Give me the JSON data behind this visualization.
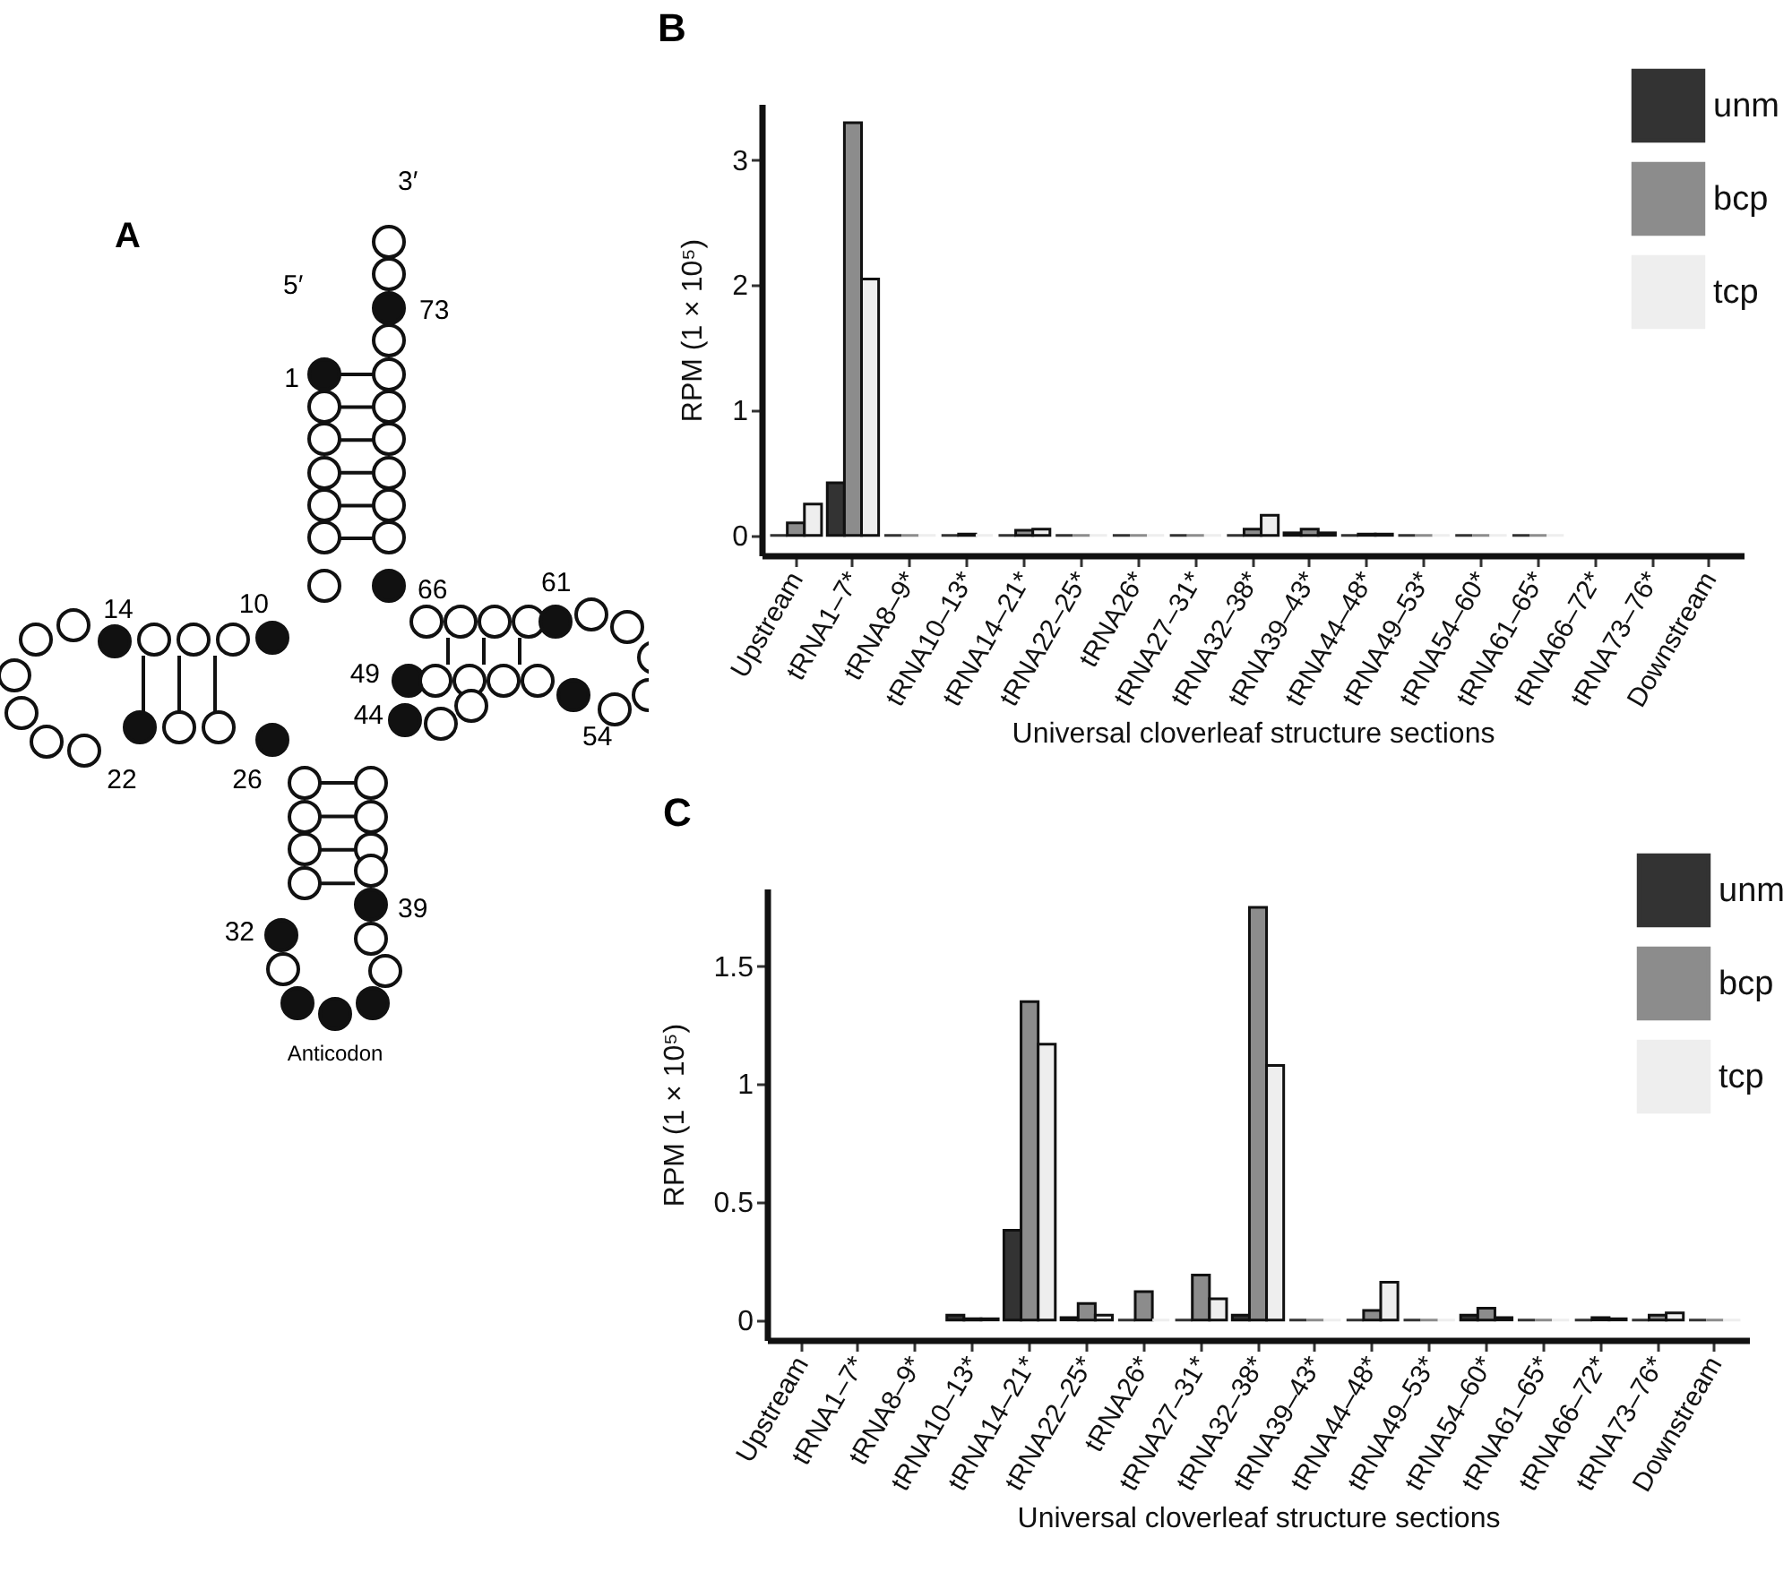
{
  "chart_data": [
    {
      "type": "other",
      "title": "A",
      "annotations": [
        "3′",
        "5′",
        "73",
        "1",
        "10",
        "66",
        "61",
        "14",
        "49",
        "44",
        "54",
        "22",
        "26",
        "32",
        "39",
        "Anticodon"
      ]
    },
    {
      "type": "bar",
      "title": "B",
      "xlabel": "Universal cloverleaf structure sections",
      "ylabel": "RPM  (1 × 10⁵)",
      "categories": [
        "Upstream",
        "tRNA1–7*",
        "tRNA8–9*",
        "tRNA10–13*",
        "tRNA14–21*",
        "tRNA22–25*",
        "tRNA26*",
        "tRNA27–31*",
        "tRNA32–38*",
        "tRNA39–43*",
        "tRNA44–48*",
        "tRNA49–53*",
        "tRNA54–60*",
        "tRNA61–65*",
        "tRNA66–72*",
        "tRNA73–76*",
        "Downstream"
      ],
      "series": [
        {
          "name": "unm",
          "color": "#333333",
          "values": [
            0,
            0.42,
            0,
            0,
            0,
            0,
            0,
            0,
            0,
            0.02,
            0,
            0,
            0,
            0,
            null,
            null,
            null
          ]
        },
        {
          "name": "bcp",
          "color": "#8c8c8c",
          "values": [
            0.1,
            3.3,
            0,
            0.01,
            0.04,
            0,
            0,
            0,
            0.05,
            0.05,
            0.01,
            0,
            0,
            0,
            null,
            null,
            null
          ]
        },
        {
          "name": "tcp",
          "color": "#eeeeee",
          "values": [
            0.25,
            2.05,
            0,
            0,
            0.05,
            0,
            0,
            0,
            0.16,
            0.02,
            0.01,
            0,
            0,
            0,
            null,
            null,
            null
          ]
        }
      ],
      "ylim": [
        -0.16,
        3.45
      ],
      "yticks": [
        0,
        1,
        2,
        3
      ],
      "grid": false,
      "legend": "top right"
    },
    {
      "type": "bar",
      "title": "C",
      "xlabel": "Universal cloverleaf structure sections",
      "ylabel": "RPM  (1 × 10⁵)",
      "categories": [
        "Upstream",
        "tRNA1–7*",
        "tRNA8–9*",
        "tRNA10–13*",
        "tRNA14–21*",
        "tRNA22–25*",
        "tRNA26*",
        "tRNA27–31*",
        "tRNA32–38*",
        "tRNA39–43*",
        "tRNA44–48*",
        "tRNA49–53*",
        "tRNA54–60*",
        "tRNA61–65*",
        "tRNA66–72*",
        "tRNA73–76*",
        "Downstream"
      ],
      "series": [
        {
          "name": "unm",
          "color": "#333333",
          "values": [
            null,
            null,
            null,
            0.02,
            0.38,
            0.01,
            0,
            0,
            0.02,
            0,
            0,
            0,
            0.02,
            0,
            0,
            0,
            0
          ]
        },
        {
          "name": "bcp",
          "color": "#8c8c8c",
          "values": [
            null,
            null,
            null,
            0.005,
            1.35,
            0.07,
            0.12,
            0.19,
            1.75,
            0,
            0.04,
            0,
            0.05,
            0,
            0.01,
            0.02,
            0
          ]
        },
        {
          "name": "tcp",
          "color": "#eeeeee",
          "values": [
            null,
            null,
            null,
            0.005,
            1.17,
            0.02,
            0,
            0.09,
            1.08,
            0,
            0.16,
            0,
            0.01,
            0,
            0.005,
            0.03,
            0
          ]
        }
      ],
      "ylim": [
        -0.085,
        1.83
      ],
      "yticks": [
        0,
        0.5,
        1,
        1.5
      ],
      "grid": false,
      "legend": "top right"
    }
  ]
}
